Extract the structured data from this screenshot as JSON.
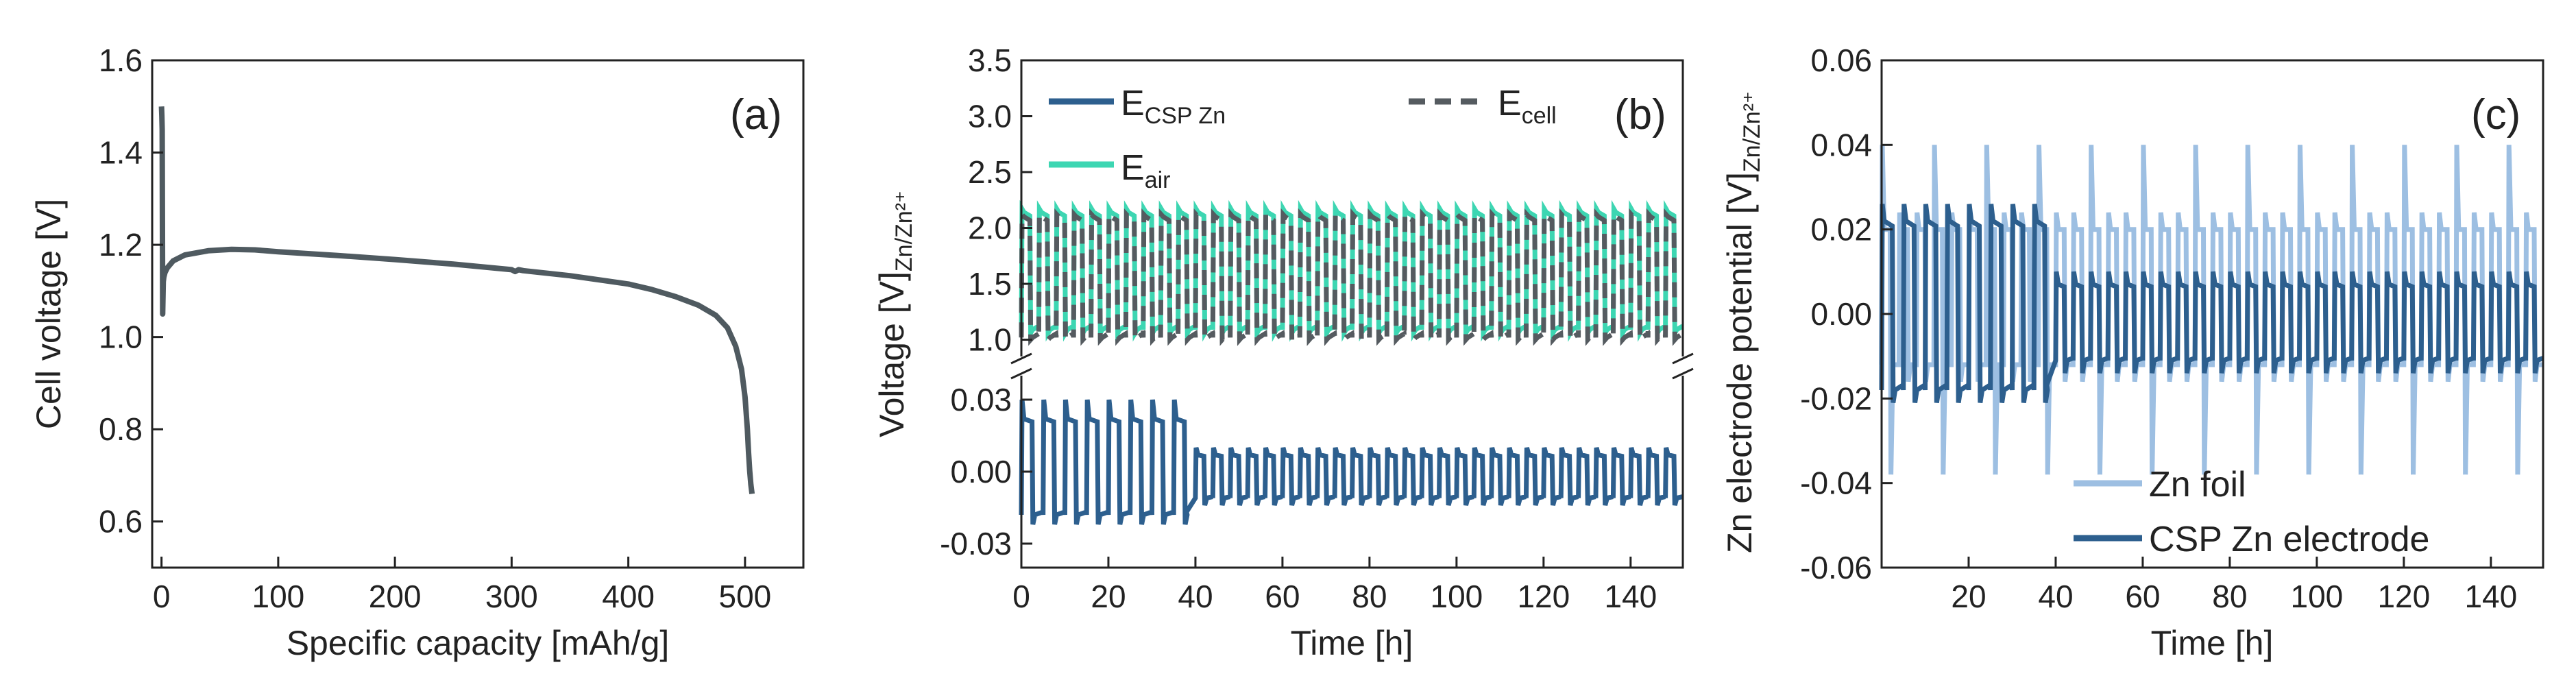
{
  "colors": {
    "axis": "#222222",
    "cell_voltage": "#4f5a60",
    "csp_zn": "#2d5f8e",
    "e_air": "#3dd6b2",
    "e_cell": "#555b60",
    "zn_foil": "#9dbfe2"
  },
  "chart_data": [
    {
      "id": "a",
      "type": "line",
      "panel_label": "(a)",
      "xlabel": "Specific capacity [mAh/g]",
      "ylabel": "Cell voltage [V]",
      "xlim": [
        -8,
        550
      ],
      "ylim": [
        0.5,
        1.6
      ],
      "xticks": [
        0,
        100,
        200,
        300,
        400,
        500
      ],
      "xtick_labels": [
        "0",
        "100",
        "200",
        "300",
        "400",
        "500"
      ],
      "yticks": [
        0.6,
        0.8,
        1.0,
        1.2,
        1.4,
        1.6
      ],
      "ytick_labels": [
        "0.6",
        "0.8",
        "1.0",
        "1.2",
        "1.4",
        "1.6"
      ],
      "series": [
        {
          "name": "Cell voltage",
          "x": [
            0,
            0.3,
            0.6,
            1,
            1.5,
            2,
            3,
            5,
            10,
            20,
            40,
            60,
            80,
            100,
            150,
            200,
            250,
            300,
            303,
            306,
            310,
            350,
            400,
            420,
            440,
            460,
            475,
            485,
            492,
            497,
            500,
            502,
            503,
            504,
            505,
            506
          ],
          "y": [
            1.5,
            1.48,
            1.45,
            1.05,
            1.12,
            1.13,
            1.14,
            1.15,
            1.165,
            1.178,
            1.187,
            1.19,
            1.189,
            1.185,
            1.177,
            1.168,
            1.158,
            1.146,
            1.142,
            1.146,
            1.144,
            1.133,
            1.115,
            1.103,
            1.088,
            1.069,
            1.047,
            1.02,
            0.98,
            0.93,
            0.87,
            0.8,
            0.75,
            0.71,
            0.68,
            0.66
          ]
        }
      ]
    },
    {
      "id": "b",
      "type": "line",
      "panel_label": "(b)",
      "xlabel": "Time [h]",
      "ylabel_main": "Voltage [V]",
      "ylabel_sub": "Zn/Zn²⁺",
      "xlim": [
        0,
        152
      ],
      "xticks": [
        0,
        20,
        40,
        60,
        80,
        100,
        120,
        140
      ],
      "xtick_labels": [
        "0",
        "20",
        "40",
        "60",
        "80",
        "100",
        "120",
        "140"
      ],
      "upper_ylim": [
        0.85,
        3.5
      ],
      "upper_yticks": [
        1.0,
        1.5,
        2.0,
        2.5,
        3.0,
        3.5
      ],
      "upper_ytick_labels": [
        "1.0",
        "1.5",
        "2.0",
        "2.5",
        "3.0",
        "3.5"
      ],
      "lower_ylim": [
        -0.04,
        0.04
      ],
      "lower_yticks": [
        -0.03,
        0.0,
        0.03
      ],
      "lower_ytick_labels": [
        "-0.03",
        "0.00",
        "0.03"
      ],
      "legend": [
        {
          "series": "E_csp",
          "label_main": "E",
          "label_sub": "CSP Zn"
        },
        {
          "series": "E_cell",
          "label_main": "E",
          "label_sub": "cell"
        },
        {
          "series": "E_air",
          "label_main": "E",
          "label_sub": "air"
        }
      ],
      "series": [
        {
          "key": "E_air",
          "name": "E air",
          "cycle_period_h": 4,
          "charge_V": 2.14,
          "discharge_V": 1.09
        },
        {
          "key": "E_cell",
          "name": "E cell",
          "cycle_period_h": 4,
          "charge_V": 2.1,
          "discharge_V": 1.02
        },
        {
          "key": "E_csp",
          "name": "E CSP Zn",
          "phase1_end_h": 38,
          "phase1_period_h": 5,
          "phase1_high_V": 0.022,
          "phase1_low_V": -0.018,
          "phase2_period_h": 4,
          "phase2_high_V": 0.007,
          "phase2_low_V": -0.011
        }
      ]
    },
    {
      "id": "c",
      "type": "line",
      "panel_label": "(c)",
      "xlabel": "Time [h]",
      "ylabel_main": "Zn electrode potential [V]",
      "ylabel_sub": "Zn/Zn²⁺",
      "xlim": [
        0,
        152
      ],
      "ylim": [
        -0.06,
        0.06
      ],
      "xticks": [
        20,
        40,
        60,
        80,
        100,
        120,
        140
      ],
      "xtick_labels": [
        "20",
        "40",
        "60",
        "80",
        "100",
        "120",
        "140"
      ],
      "yticks": [
        -0.06,
        -0.04,
        -0.02,
        0.0,
        0.02,
        0.04,
        0.06
      ],
      "ytick_labels": [
        "-0.06",
        "-0.04",
        "-0.02",
        "0.00",
        "0.02",
        "0.04",
        "0.06"
      ],
      "legend": [
        {
          "series": "zn_foil",
          "label": "Zn foil"
        },
        {
          "series": "csp",
          "label": "CSP Zn electrode"
        }
      ],
      "series": [
        {
          "key": "zn_foil",
          "name": "Zn foil",
          "cycle_period_h": 4,
          "high_V": 0.02,
          "low_V": -0.012,
          "spike_high_V": 0.04,
          "spike_low_V": -0.038
        },
        {
          "key": "csp",
          "name": "CSP Zn electrode",
          "phase1_end_h": 38,
          "phase1_period_h": 5,
          "phase1_high_V": 0.022,
          "phase1_low_V": -0.018,
          "phase2_period_h": 4,
          "phase2_high_V": 0.007,
          "phase2_low_V": -0.011
        }
      ]
    }
  ]
}
